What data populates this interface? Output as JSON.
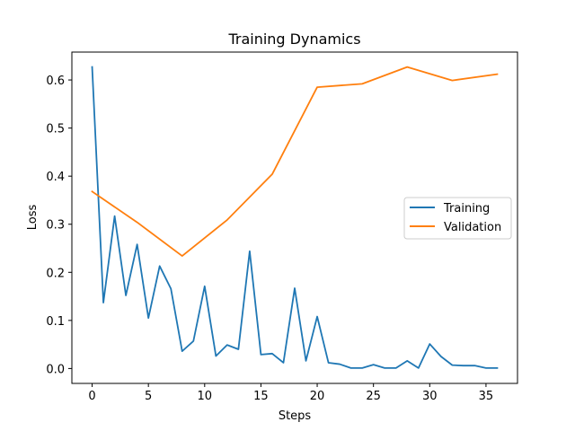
{
  "chart_data": {
    "type": "line",
    "title": "Training Dynamics",
    "xlabel": "Steps",
    "ylabel": "Loss",
    "xlim": [
      -1.8,
      37.8
    ],
    "ylim": [
      -0.031,
      0.658
    ],
    "xticks": [
      0,
      5,
      10,
      15,
      20,
      25,
      30,
      35
    ],
    "yticks": [
      0.0,
      0.1,
      0.2,
      0.3,
      0.4,
      0.5,
      0.6
    ],
    "ytick_labels": [
      "0.0",
      "0.1",
      "0.2",
      "0.3",
      "0.4",
      "0.5",
      "0.6"
    ],
    "grid": false,
    "legend_position": "center-right",
    "series": [
      {
        "name": "Training",
        "color": "#1f77b4",
        "x": [
          0,
          1,
          2,
          3,
          4,
          5,
          6,
          7,
          8,
          9,
          10,
          11,
          12,
          13,
          14,
          15,
          16,
          17,
          18,
          19,
          20,
          21,
          22,
          23,
          24,
          25,
          26,
          27,
          28,
          29,
          30,
          31,
          32,
          33,
          34,
          35,
          36
        ],
        "y": [
          0.627,
          0.137,
          0.317,
          0.152,
          0.258,
          0.105,
          0.213,
          0.166,
          0.036,
          0.057,
          0.171,
          0.026,
          0.049,
          0.04,
          0.244,
          0.029,
          0.031,
          0.012,
          0.167,
          0.016,
          0.108,
          0.012,
          0.009,
          0.001,
          0.001,
          0.008,
          0.001,
          0.001,
          0.016,
          0.001,
          0.051,
          0.025,
          0.007,
          0.006,
          0.006,
          0.001,
          0.001
        ]
      },
      {
        "name": "Validation",
        "color": "#ff7f0e",
        "x": [
          0,
          4,
          8,
          12,
          16,
          20,
          24,
          28,
          32,
          36
        ],
        "y": [
          0.368,
          0.304,
          0.234,
          0.309,
          0.404,
          0.585,
          0.592,
          0.627,
          0.599,
          0.612
        ]
      }
    ]
  }
}
